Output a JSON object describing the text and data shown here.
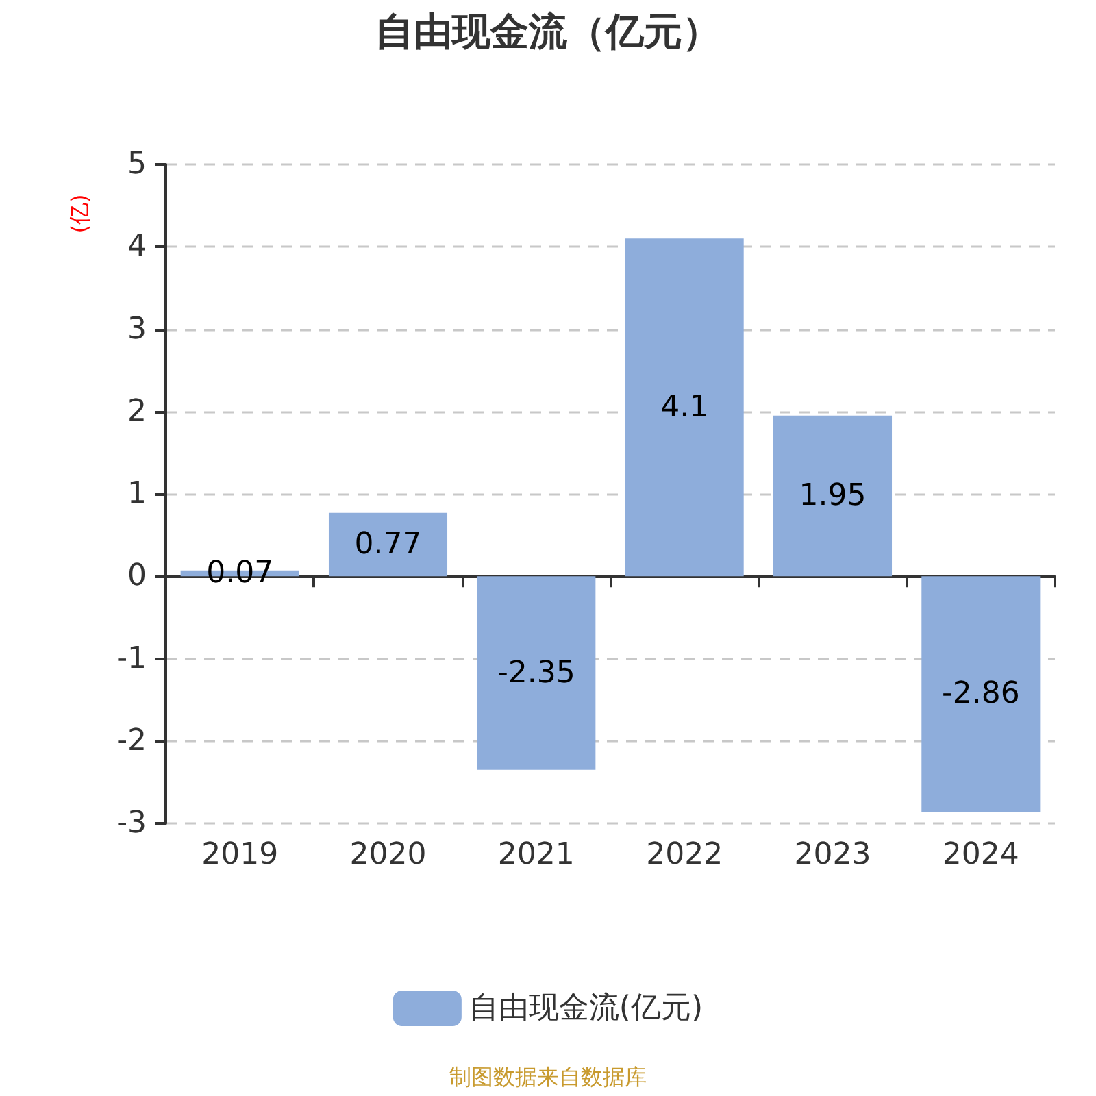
{
  "chart_data": {
    "type": "bar",
    "title": "自由现金流（亿元）",
    "ylabel": "(亿)",
    "categories": [
      "2019",
      "2020",
      "2021",
      "2022",
      "2023",
      "2024"
    ],
    "series": [
      {
        "name": "自由现金流(亿元)",
        "color": "#8eaddb",
        "values": [
          0.07,
          0.77,
          -2.35,
          4.1,
          1.95,
          -2.86
        ]
      }
    ],
    "ylim": [
      -3,
      5
    ],
    "yticks": [
      -3,
      -2,
      -1,
      0,
      1,
      2,
      3,
      4,
      5
    ],
    "grid": "y",
    "legend": "bottom",
    "data_labels": true,
    "annotations": [
      "制图数据来自数据库"
    ]
  }
}
